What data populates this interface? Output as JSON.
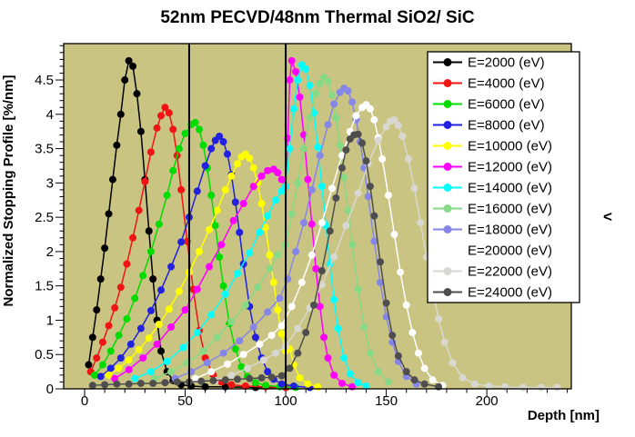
{
  "chart_data": {
    "type": "line",
    "title": "52nm PECVD/48nm Thermal SiO2/ SiC",
    "xlabel": "Depth [nm]",
    "ylabel": "Normalized Stopping Profile [%/nm]",
    "annotation": "<",
    "xlim": [
      -10.4,
      242
    ],
    "ylim": [
      0,
      5.03
    ],
    "x_major_ticks": [
      0,
      50,
      100,
      150,
      200
    ],
    "x_minor_step": 10,
    "y_major_ticks": [
      0,
      0.5,
      1,
      1.5,
      2,
      2.5,
      3,
      3.5,
      4,
      4.5
    ],
    "y_minor_step": 0.1,
    "grid": false,
    "plot_bg_color": "#cac482",
    "boundary_lines_x": [
      52,
      100
    ],
    "boundary_line_color": "#000000",
    "legend_position": "top-right",
    "series": [
      {
        "label": "E=2000 (eV)",
        "color": "#000000",
        "x": [
          2,
          4,
          6,
          8,
          10,
          12,
          14,
          16,
          18,
          20,
          22,
          24,
          26,
          28,
          30,
          32,
          34,
          36,
          38,
          41,
          44,
          48,
          53,
          60,
          70,
          85,
          100
        ],
        "y": [
          0.35,
          0.75,
          1.15,
          1.6,
          2.05,
          2.55,
          3.05,
          3.55,
          4.0,
          4.5,
          4.78,
          4.7,
          4.3,
          3.75,
          3.05,
          2.3,
          1.6,
          1.0,
          0.55,
          0.25,
          0.12,
          0.06,
          0.04,
          0.03,
          0.03,
          0.02,
          0.02
        ]
      },
      {
        "label": "E=4000 (eV)",
        "color": "#f01414",
        "x": [
          3,
          6,
          9,
          12,
          15,
          18,
          21,
          24,
          27,
          30,
          33,
          36,
          38,
          40,
          42,
          44,
          46,
          48,
          51,
          54,
          57,
          60,
          64,
          68,
          73,
          80,
          90,
          100
        ],
        "y": [
          0.25,
          0.45,
          0.68,
          0.92,
          1.18,
          1.48,
          1.82,
          2.2,
          2.6,
          3.02,
          3.45,
          3.8,
          3.98,
          4.1,
          4.02,
          3.78,
          3.4,
          2.9,
          2.15,
          1.45,
          0.85,
          0.45,
          0.2,
          0.1,
          0.06,
          0.04,
          0.03,
          0.02
        ]
      },
      {
        "label": "E=6000 (eV)",
        "color": "#00dc00",
        "x": [
          5,
          9,
          13,
          17,
          21,
          25,
          29,
          33,
          37,
          41,
          44,
          47,
          50,
          53,
          55,
          57,
          59,
          61,
          63,
          65,
          67,
          69,
          72,
          75,
          78,
          81,
          85,
          90,
          97,
          105
        ],
        "y": [
          0.2,
          0.35,
          0.55,
          0.78,
          1.02,
          1.32,
          1.65,
          2.0,
          2.4,
          2.82,
          3.18,
          3.5,
          3.72,
          3.85,
          3.88,
          3.78,
          3.55,
          3.22,
          2.82,
          2.38,
          1.92,
          1.5,
          0.95,
          0.58,
          0.32,
          0.18,
          0.09,
          0.05,
          0.03,
          0.02
        ]
      },
      {
        "label": "E=8000 (eV)",
        "color": "#2121de",
        "x": [
          8,
          13,
          18,
          23,
          28,
          33,
          38,
          43,
          48,
          52,
          56,
          60,
          63,
          65,
          67,
          69,
          71,
          73,
          75,
          77,
          79,
          82,
          85,
          88,
          91,
          94,
          98,
          104,
          112
        ],
        "y": [
          0.18,
          0.3,
          0.45,
          0.65,
          0.88,
          1.14,
          1.44,
          1.78,
          2.14,
          2.5,
          2.88,
          3.25,
          3.5,
          3.62,
          3.68,
          3.6,
          3.42,
          3.12,
          2.72,
          2.28,
          1.82,
          1.2,
          0.75,
          0.45,
          0.25,
          0.14,
          0.07,
          0.04,
          0.02
        ]
      },
      {
        "label": "E=10000 (eV)",
        "color": "#ffff00",
        "x": [
          12,
          17,
          22,
          27,
          32,
          37,
          42,
          47,
          52,
          57,
          62,
          66,
          70,
          73,
          76,
          78,
          80,
          82,
          84,
          86,
          88,
          90,
          92,
          94,
          96,
          98,
          100,
          102,
          104,
          107,
          111,
          116
        ],
        "y": [
          0.2,
          0.3,
          0.42,
          0.57,
          0.74,
          0.94,
          1.16,
          1.42,
          1.7,
          2.0,
          2.32,
          2.6,
          2.9,
          3.1,
          3.28,
          3.38,
          3.42,
          3.36,
          3.22,
          3.0,
          2.7,
          2.35,
          1.95,
          1.55,
          1.15,
          0.8,
          0.55,
          0.58,
          0.35,
          0.16,
          0.07,
          0.03
        ]
      },
      {
        "label": "E=12000 (eV)",
        "color": "#ff00ff",
        "x": [
          15,
          22,
          29,
          36,
          43,
          50,
          56,
          62,
          68,
          74,
          79,
          84,
          88,
          91,
          94,
          96,
          98,
          100,
          101,
          102,
          103,
          105,
          107,
          109,
          111,
          113,
          115,
          117,
          119,
          121,
          124,
          128,
          133
        ],
        "y": [
          0.15,
          0.28,
          0.45,
          0.65,
          0.9,
          1.15,
          1.45,
          1.78,
          2.1,
          2.45,
          2.7,
          2.95,
          3.1,
          3.18,
          3.2,
          3.15,
          3.05,
          2.95,
          3.65,
          4.5,
          4.78,
          4.62,
          4.25,
          3.7,
          3.05,
          2.4,
          1.75,
          1.2,
          0.75,
          0.45,
          0.2,
          0.08,
          0.03
        ]
      },
      {
        "label": "E=14000 (eV)",
        "color": "#00ffff",
        "x": [
          25,
          33,
          41,
          49,
          56,
          63,
          70,
          76,
          82,
          87,
          91,
          95,
          98,
          100,
          102,
          104,
          106,
          108,
          110,
          112,
          114,
          116,
          118,
          120,
          122,
          124,
          126,
          129,
          132,
          136,
          140
        ],
        "y": [
          0.15,
          0.25,
          0.4,
          0.6,
          0.82,
          1.08,
          1.38,
          1.68,
          1.98,
          2.28,
          2.52,
          2.75,
          2.88,
          2.95,
          3.5,
          4.08,
          4.5,
          4.72,
          4.66,
          4.42,
          4.02,
          3.52,
          2.95,
          2.38,
          1.82,
          1.3,
          0.88,
          0.45,
          0.22,
          0.09,
          0.04
        ]
      },
      {
        "label": "E=16000 (eV)",
        "color": "#86d985",
        "x": [
          35,
          43,
          51,
          59,
          66,
          73,
          80,
          86,
          92,
          96,
          100,
          103,
          106,
          109,
          112,
          115,
          117,
          119,
          121,
          123,
          125,
          127,
          129,
          131,
          133,
          136,
          139,
          142,
          146,
          151
        ],
        "y": [
          0.15,
          0.25,
          0.38,
          0.55,
          0.75,
          0.98,
          1.22,
          1.48,
          1.75,
          1.95,
          2.1,
          2.55,
          3.0,
          3.5,
          3.95,
          4.3,
          4.45,
          4.54,
          4.48,
          4.28,
          3.95,
          3.55,
          3.08,
          2.6,
          2.1,
          1.45,
          0.9,
          0.52,
          0.25,
          0.1
        ]
      },
      {
        "label": "E=18000 (eV)",
        "color": "#8686e8",
        "x": [
          45,
          53,
          61,
          69,
          77,
          84,
          91,
          97,
          101,
          105,
          109,
          113,
          117,
          121,
          124,
          127,
          129,
          131,
          133,
          135,
          137,
          139,
          141,
          144,
          147,
          150,
          153,
          156,
          160,
          165
        ],
        "y": [
          0.15,
          0.25,
          0.38,
          0.52,
          0.7,
          0.9,
          1.12,
          1.32,
          1.6,
          2.0,
          2.42,
          2.9,
          3.4,
          3.85,
          4.15,
          4.32,
          4.38,
          4.34,
          4.18,
          3.92,
          3.6,
          3.22,
          2.8,
          2.15,
          1.55,
          1.05,
          0.68,
          0.4,
          0.18,
          0.07
        ]
      },
      {
        "label": "E=20000 (eV)",
        "color": "#ffffff",
        "x": [
          55,
          63,
          71,
          79,
          87,
          93,
          98,
          103,
          108,
          113,
          118,
          123,
          128,
          132,
          135,
          138,
          140,
          142,
          144,
          146,
          148,
          151,
          154,
          157,
          160,
          163,
          166,
          169,
          173,
          178
        ],
        "y": [
          0.15,
          0.25,
          0.36,
          0.5,
          0.65,
          0.78,
          0.92,
          1.2,
          1.55,
          1.95,
          2.42,
          2.92,
          3.4,
          3.75,
          3.98,
          4.1,
          4.14,
          4.08,
          3.92,
          3.66,
          3.35,
          2.82,
          2.25,
          1.7,
          1.22,
          0.82,
          0.52,
          0.3,
          0.13,
          0.05
        ]
      },
      {
        "label": "E=22000 (eV)",
        "color": "#d9d8d0",
        "x": [
          65,
          73,
          81,
          89,
          95,
          100,
          106,
          112,
          118,
          124,
          130,
          136,
          141,
          146,
          150,
          152,
          154,
          156,
          158,
          161,
          164,
          167,
          170,
          173,
          176,
          179,
          183,
          188,
          194,
          201,
          209,
          218,
          227,
          235
        ],
        "y": [
          0.12,
          0.2,
          0.3,
          0.42,
          0.52,
          0.62,
          0.88,
          1.18,
          1.52,
          1.92,
          2.38,
          2.85,
          3.28,
          3.62,
          3.82,
          3.9,
          3.92,
          3.84,
          3.68,
          3.35,
          2.92,
          2.42,
          1.92,
          1.45,
          1.02,
          0.68,
          0.38,
          0.16,
          0.07,
          0.04,
          0.03,
          0.02,
          0.02,
          0.02
        ]
      },
      {
        "label": "E=24000 (eV)",
        "color": "#4e4e4e",
        "x": [
          4,
          10,
          16,
          22,
          28,
          34,
          40,
          46,
          52,
          58,
          64,
          70,
          76,
          82,
          88,
          93,
          98,
          102,
          106,
          110,
          114,
          118,
          122,
          125,
          128,
          130,
          132,
          134,
          136,
          138,
          140,
          142,
          144,
          147,
          150,
          153,
          156,
          160,
          164,
          169,
          176
        ],
        "y": [
          0.05,
          0.06,
          0.07,
          0.07,
          0.08,
          0.08,
          0.09,
          0.1,
          0.1,
          0.11,
          0.12,
          0.13,
          0.14,
          0.15,
          0.16,
          0.17,
          0.19,
          0.3,
          0.52,
          0.82,
          1.22,
          1.72,
          2.3,
          2.78,
          3.22,
          3.48,
          3.64,
          3.7,
          3.71,
          3.58,
          3.32,
          2.95,
          2.52,
          1.85,
          1.25,
          0.78,
          0.48,
          0.25,
          0.13,
          0.07,
          0.03
        ]
      }
    ]
  }
}
